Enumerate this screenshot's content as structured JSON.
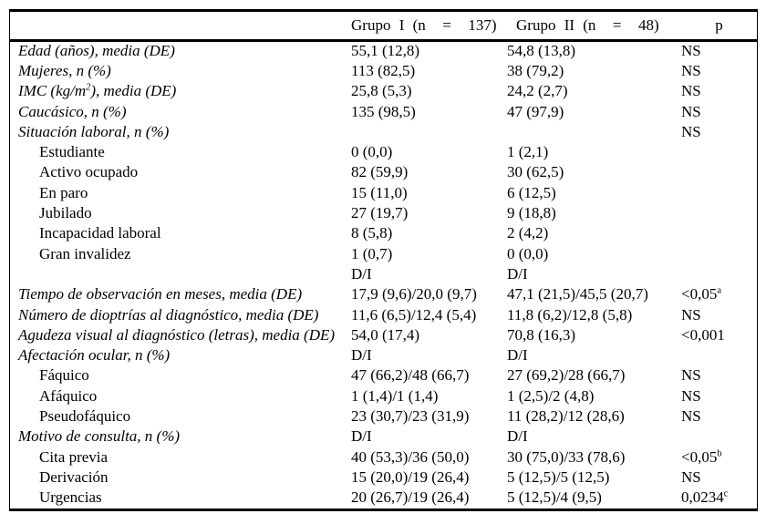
{
  "colors": {
    "background": "#ffffff",
    "text": "#000000",
    "rule": "#000000"
  },
  "table": {
    "header": {
      "label": "",
      "grupo1": "Grupo I (n  =  137)",
      "grupo2": "Grupo II (n  =  48)",
      "p": "p"
    },
    "rows": [
      {
        "label": "Edad (años), media (DE)",
        "indent": false,
        "grupo1": "55,1 (12,8)",
        "grupo2": "54,8 (13,8)",
        "p": "NS"
      },
      {
        "label": "Mujeres, n (%)",
        "indent": false,
        "grupo1": "113 (82,5)",
        "grupo2": "38 (79,2)",
        "p": "NS"
      },
      {
        "label": "IMC (kg/m^{2}), media (DE)",
        "indent": false,
        "grupo1": "25,8 (5,3)",
        "grupo2": "24,2 (2,7)",
        "p": "NS"
      },
      {
        "label": "Caucásico, n (%)",
        "indent": false,
        "grupo1": "135 (98,5)",
        "grupo2": "47 (97,9)",
        "p": "NS"
      },
      {
        "label": "Situación laboral, n (%)",
        "indent": false,
        "grupo1": "",
        "grupo2": "",
        "p": "NS"
      },
      {
        "label": "Estudiante",
        "indent": true,
        "grupo1": "0 (0,0)",
        "grupo2": "1 (2,1)",
        "p": ""
      },
      {
        "label": "Activo ocupado",
        "indent": true,
        "grupo1": "82 (59,9)",
        "grupo2": "30 (62,5)",
        "p": ""
      },
      {
        "label": "En paro",
        "indent": true,
        "grupo1": "15 (11,0)",
        "grupo2": "6 (12,5)",
        "p": ""
      },
      {
        "label": "Jubilado",
        "indent": true,
        "grupo1": "27 (19,7)",
        "grupo2": "9 (18,8)",
        "p": ""
      },
      {
        "label": "Incapacidad laboral",
        "indent": true,
        "grupo1": "8 (5,8)",
        "grupo2": "2 (4,2)",
        "p": ""
      },
      {
        "label": "Gran invalidez",
        "indent": true,
        "grupo1": "1 (0,7)",
        "grupo2": "0 (0,0)",
        "p": ""
      },
      {
        "label": "",
        "indent": true,
        "grupo1": "D/I",
        "grupo2": "D/I",
        "p": ""
      },
      {
        "label": "Tiempo de observación en meses, media (DE)",
        "indent": false,
        "grupo1": "17,9 (9,6)/20,0 (9,7)",
        "grupo2": "47,1 (21,5)/45,5 (20,7)",
        "p": "<0,05^{a}"
      },
      {
        "label": "Número de dioptrías al diagnóstico, media (DE)",
        "indent": false,
        "grupo1": "11,6 (6,5)/12,4 (5,4)",
        "grupo2": "11,8 (6,2)/12,8 (5,8)",
        "p": "NS"
      },
      {
        "label": "Agudeza visual al diagnóstico (letras), media (DE)",
        "indent": false,
        "grupo1": "54,0 (17,4)",
        "grupo2": "70,8 (16,3)",
        "p": "<0,001"
      },
      {
        "label": "Afectación ocular, n (%)",
        "indent": false,
        "grupo1": "D/I",
        "grupo2": "D/I",
        "p": ""
      },
      {
        "label": "Fáquico",
        "indent": true,
        "grupo1": "47 (66,2)/48 (66,7)",
        "grupo2": "27 (69,2)/28 (66,7)",
        "p": "NS"
      },
      {
        "label": "Afáquico",
        "indent": true,
        "grupo1": "1 (1,4)/1 (1,4)",
        "grupo2": "1 (2,5)/2 (4,8)",
        "p": "NS"
      },
      {
        "label": "Pseudofáquico",
        "indent": true,
        "grupo1": "23 (30,7)/23 (31,9)",
        "grupo2": "11 (28,2)/12 (28,6)",
        "p": "NS"
      },
      {
        "label": "Motivo de consulta, n (%)",
        "indent": false,
        "grupo1": "D/I",
        "grupo2": "D/I",
        "p": ""
      },
      {
        "label": "Cita previa",
        "indent": true,
        "grupo1": "40 (53,3)/36 (50,0)",
        "grupo2": "30 (75,0)/33 (78,6)",
        "p": "<0,05^{b}"
      },
      {
        "label": "Derivación",
        "indent": true,
        "grupo1": "15 (20,0)/19 (26,4)",
        "grupo2": "5 (12,5)/5 (12,5)",
        "p": "NS"
      },
      {
        "label": "Urgencias",
        "indent": true,
        "grupo1": "20 (26,7)/19 (26,4)",
        "grupo2": "5 (12,5)/4 (9,5)",
        "p": "0,0234^{c}"
      }
    ]
  }
}
